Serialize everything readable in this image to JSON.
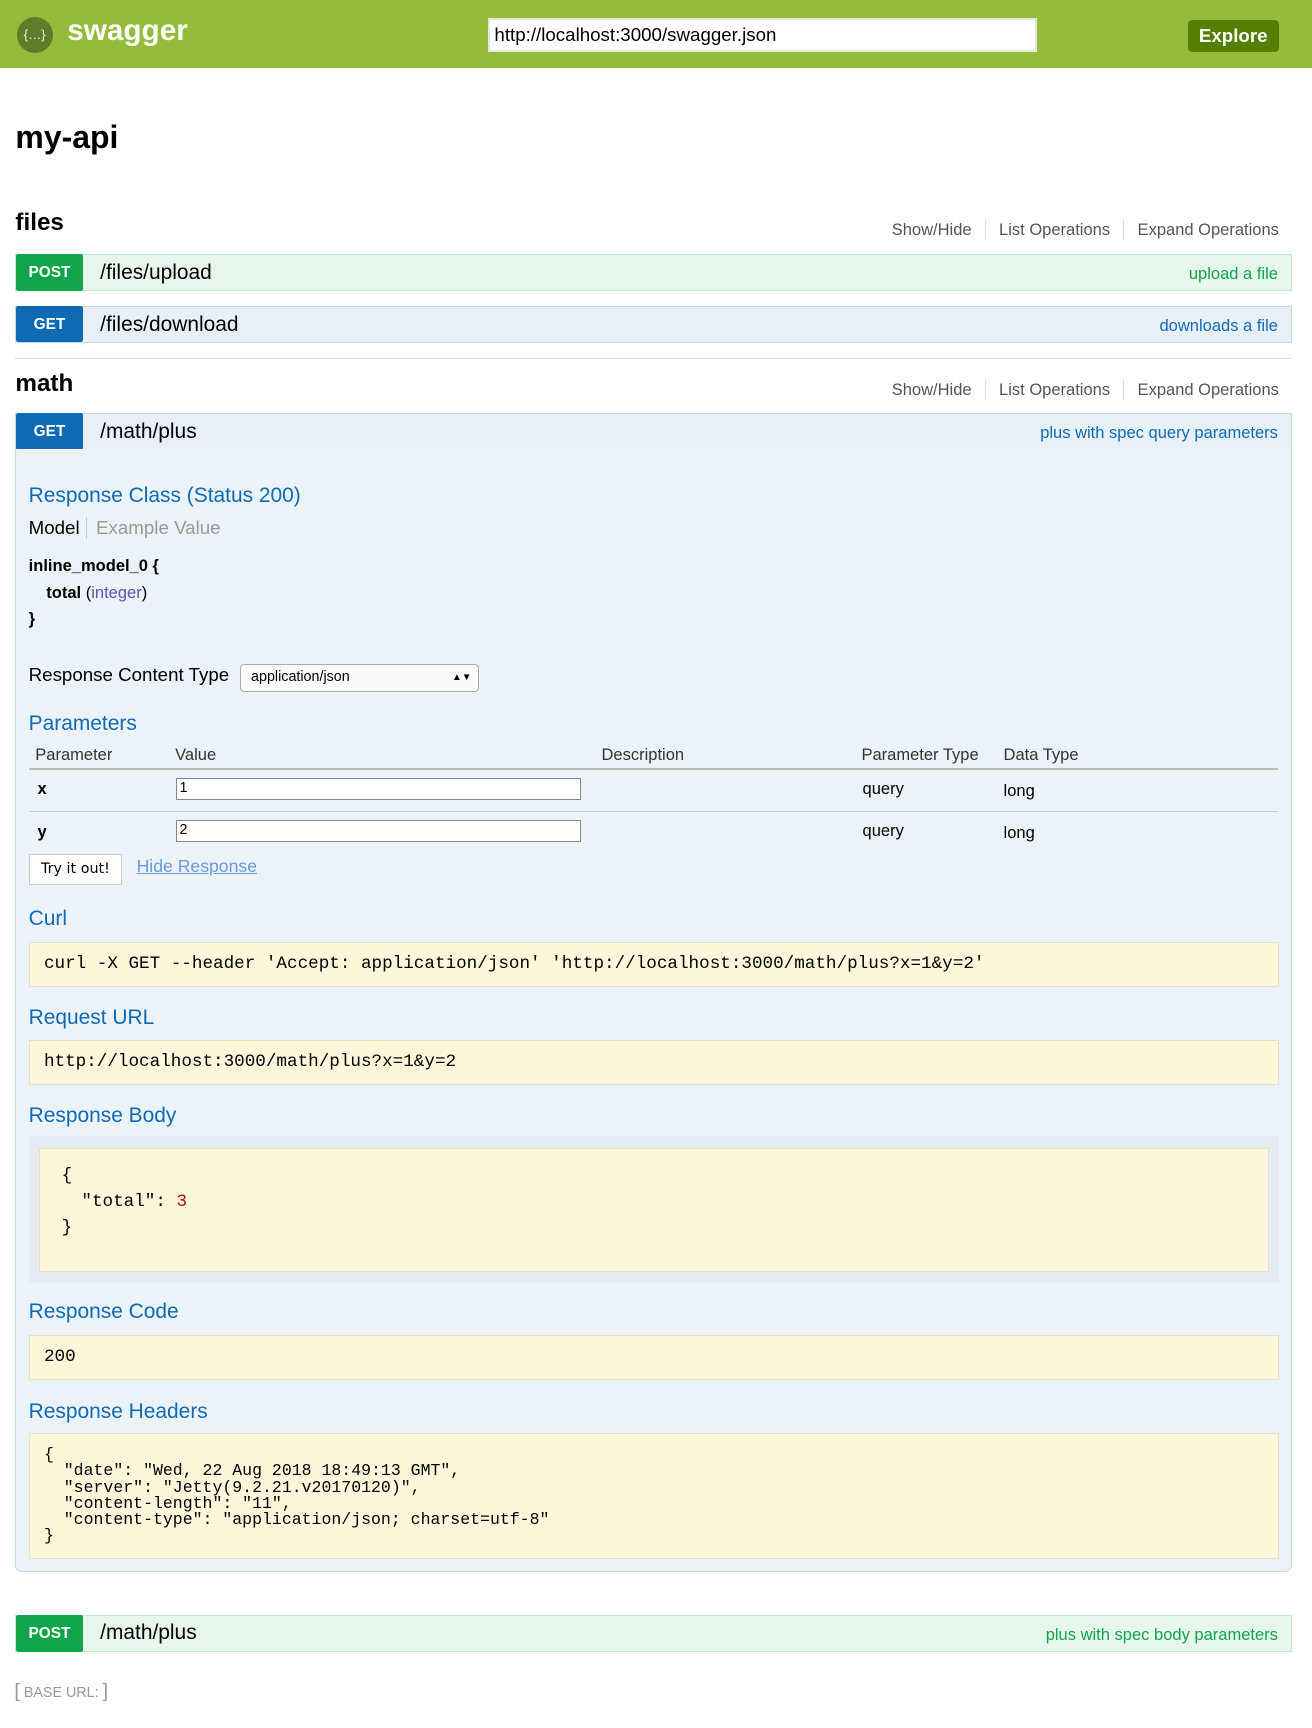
{
  "header": {
    "brand": "swagger",
    "logo": "swagger-logo-icon",
    "url": "http://localhost:3000/swagger.json",
    "explore": "Explore"
  },
  "api_title": "my-api",
  "links": {
    "show_hide": "Show/Hide",
    "list": "List Operations",
    "expand": "Expand Operations"
  },
  "sections": [
    {
      "name": "files",
      "ops": [
        {
          "method": "POST",
          "path": "/files/upload",
          "summary": "upload a file"
        },
        {
          "method": "GET",
          "path": "/files/download",
          "summary": "downloads a file"
        }
      ]
    },
    {
      "name": "math",
      "ops": [
        {
          "method": "GET",
          "path": "/math/plus",
          "summary": "plus with spec query parameters"
        },
        {
          "method": "POST",
          "path": "/math/plus",
          "summary": "plus with spec body parameters"
        }
      ]
    }
  ],
  "detail": {
    "response_class": "Response Class (Status 200)",
    "model_tab": "Model",
    "example_tab": "Example Value",
    "model_name": "inline_model_0 {",
    "field": "total",
    "field_type_open": "(",
    "field_type": "integer",
    "field_type_close": ")",
    "model_close": "}",
    "content_type_label": "Response Content Type",
    "content_type": "application/json",
    "parameters_title": "Parameters",
    "columns": [
      "Parameter",
      "Value",
      "Description",
      "Parameter Type",
      "Data Type"
    ],
    "params": [
      {
        "name": "x",
        "value": "1",
        "type": "query",
        "data_type": "long"
      },
      {
        "name": "y",
        "value": "2",
        "type": "query",
        "data_type": "long"
      }
    ],
    "try": "Try it out!",
    "hide": "Hide Response",
    "curl_title": "Curl",
    "curl": "curl -X GET --header 'Accept: application/json' 'http://localhost:3000/math/plus?x=1&y=2'",
    "request_url_title": "Request URL",
    "request_url": "http://localhost:3000/math/plus?x=1&y=2",
    "response_body_title": "Response Body",
    "body_open": "{",
    "body_key": "\"total\": ",
    "body_value": "3",
    "body_close": "}",
    "response_code_title": "Response Code",
    "response_code": "200",
    "response_headers_title": "Response Headers",
    "headers": "{\n  \"date\": \"Wed, 22 Aug 2018 18:49:13 GMT\",\n  \"server\": \"Jetty(9.2.21.v20170120)\",\n  \"content-length\": \"11\",\n  \"content-type\": \"application/json; charset=utf-8\"\n}"
  },
  "footer": {
    "base_url": "BASE URL:"
  },
  "colors": {
    "header": "#94bb3a",
    "post": "#10a54a",
    "get": "#0f6ab4",
    "explore": "#547f00"
  }
}
